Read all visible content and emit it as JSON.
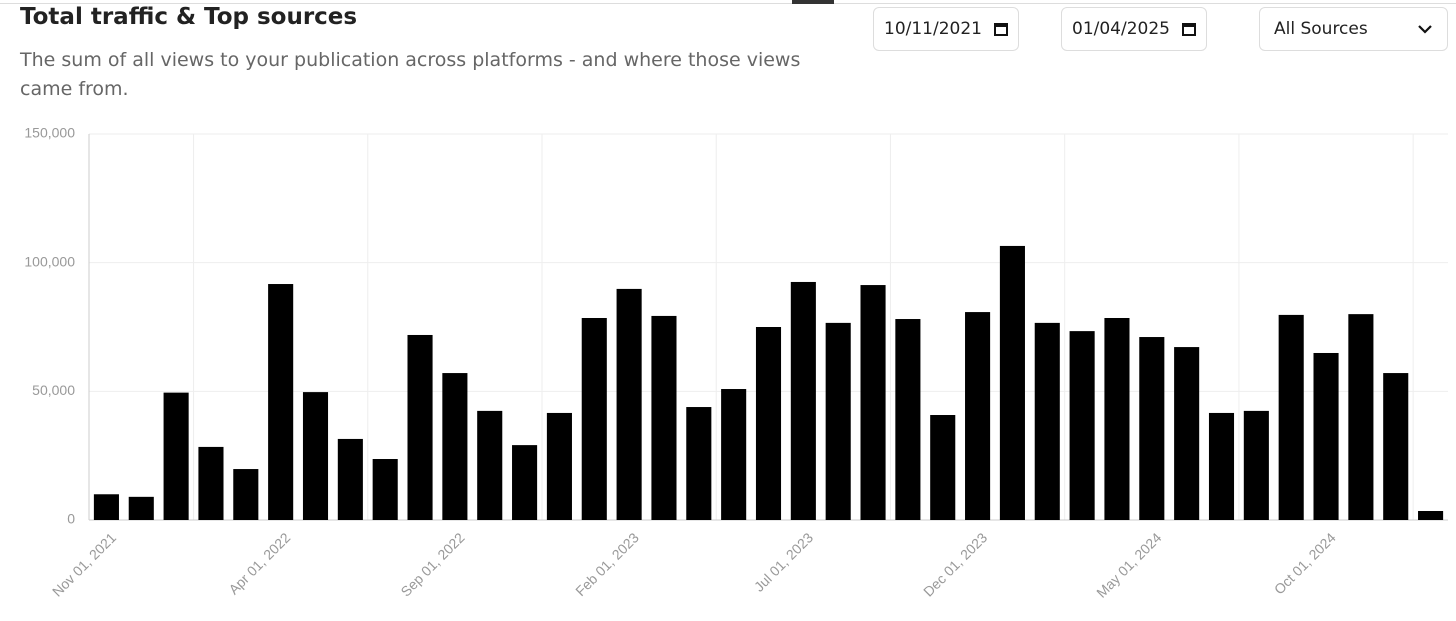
{
  "header": {
    "title": "Total traffic & Top sources",
    "subtitle": "The sum of all views to your publication across platforms - and where those views came from."
  },
  "controls": {
    "start_date": "10/11/2021",
    "end_date": "01/04/2025",
    "source": "All Sources"
  },
  "chart_data": {
    "type": "bar",
    "color": "#000000",
    "grid": true,
    "categories": [
      "Nov 01, 2021",
      null,
      null,
      null,
      null,
      "Apr 01, 2022",
      null,
      null,
      null,
      null,
      "Sep 01, 2022",
      null,
      null,
      null,
      null,
      "Feb 01, 2023",
      null,
      null,
      null,
      null,
      "Jul 01, 2023",
      null,
      null,
      null,
      null,
      "Dec 01, 2023",
      null,
      null,
      null,
      null,
      "May 01, 2024",
      null,
      null,
      null,
      null,
      "Oct 01, 2024",
      null,
      null,
      null
    ],
    "values": [
      10000,
      9000,
      49500,
      28400,
      19800,
      91700,
      49700,
      31500,
      23700,
      71900,
      57100,
      42400,
      29100,
      41600,
      78500,
      89800,
      79300,
      43900,
      50900,
      75000,
      92500,
      76600,
      91300,
      78100,
      40800,
      80800,
      106500,
      76600,
      73400,
      78500,
      71100,
      67200,
      41600,
      42400,
      79700,
      64900,
      80000,
      57100,
      3500
    ],
    "ylim": [
      0,
      150000
    ],
    "yticks": [
      0,
      {
        "value": 50000,
        "label": "50,000"
      },
      {
        "value": 100000,
        "label": "100,000"
      },
      {
        "value": 150000,
        "label": "150,000"
      }
    ]
  }
}
